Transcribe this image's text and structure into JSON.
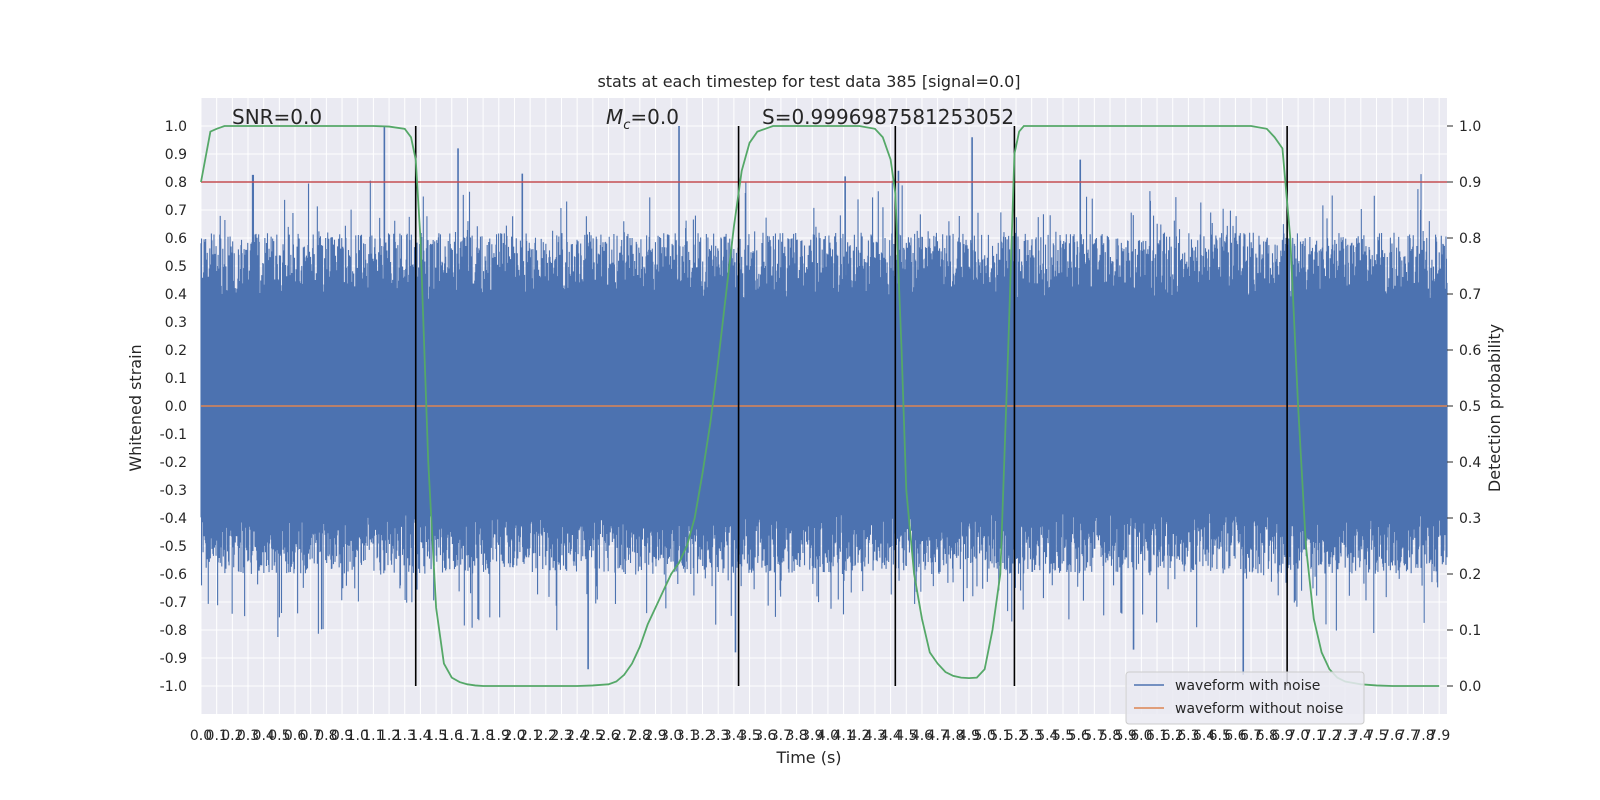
{
  "chart_data": {
    "type": "line",
    "title": "stats at each timestep for test data 385 [signal=0.0]",
    "xlabel": "Time (s)",
    "ylabel": "Whitened strain",
    "ylabel_right": "Detection probability",
    "xlim": [
      0.0,
      7.95
    ],
    "ylim": [
      -1.1,
      1.1
    ],
    "ylim_right": [
      -0.05,
      1.05
    ],
    "x_ticks": [
      0.0,
      0.1,
      0.2,
      0.3,
      0.4,
      0.5,
      0.6,
      0.7,
      0.8,
      0.9,
      1.0,
      1.1,
      1.2,
      1.3,
      1.4,
      1.5,
      1.6,
      1.7,
      1.8,
      1.9,
      2.0,
      2.1,
      2.2,
      2.3,
      2.4,
      2.5,
      2.6,
      2.7,
      2.8,
      2.9,
      3.0,
      3.1,
      3.2,
      3.3,
      3.4,
      3.5,
      3.6,
      3.7,
      3.8,
      3.9,
      4.0,
      4.1,
      4.2,
      4.3,
      4.4,
      4.5,
      4.6,
      4.7,
      4.8,
      4.9,
      5.0,
      5.1,
      5.2,
      5.3,
      5.4,
      5.5,
      5.6,
      5.7,
      5.8,
      5.9,
      6.0,
      6.1,
      6.2,
      6.3,
      6.4,
      6.5,
      6.6,
      6.7,
      6.8,
      6.9,
      7.0,
      7.1,
      7.2,
      7.3,
      7.4,
      7.5,
      7.6,
      7.7,
      7.8,
      7.9
    ],
    "y_ticks": [
      -1.0,
      -0.9,
      -0.8,
      -0.7,
      -0.6,
      -0.5,
      -0.4,
      -0.3,
      -0.2,
      -0.1,
      0.0,
      0.1,
      0.2,
      0.3,
      0.4,
      0.5,
      0.6,
      0.7,
      0.8,
      0.9,
      1.0
    ],
    "y_ticks_right": [
      0.0,
      0.1,
      0.2,
      0.3,
      0.4,
      0.5,
      0.6,
      0.7,
      0.8,
      0.9,
      1.0
    ],
    "grid": true,
    "legend_position": "lower-right",
    "annotations": {
      "snr": "SNR=0.0",
      "mc_symbol": "M",
      "mc_sub": "c",
      "mc_value": "=0.0",
      "s": "S=0.9996987581253052"
    },
    "threshold_line": {
      "y_right": 0.9,
      "color": "#c44e52"
    },
    "zero_line": {
      "y": 0.0,
      "color": "#dd8452"
    },
    "vertical_lines_x": [
      1.37,
      3.43,
      4.43,
      5.19,
      6.93
    ],
    "series": [
      {
        "name": "waveform with noise",
        "color": "#4c72b0",
        "axis": "left",
        "render": "dense-noise",
        "envelope_max": 1.0,
        "envelope_min": -0.95,
        "core_amplitude": 0.38,
        "spikes": [
          {
            "x": 1.17,
            "y": 1.0
          },
          {
            "x": 1.37,
            "y": 0.82
          },
          {
            "x": 1.64,
            "y": 0.92
          },
          {
            "x": 2.05,
            "y": 0.83
          },
          {
            "x": 2.47,
            "y": -0.94
          },
          {
            "x": 3.05,
            "y": 1.0
          },
          {
            "x": 3.41,
            "y": -0.88
          },
          {
            "x": 4.11,
            "y": 0.82
          },
          {
            "x": 4.45,
            "y": 0.84
          },
          {
            "x": 4.92,
            "y": 0.96
          },
          {
            "x": 5.61,
            "y": 0.88
          },
          {
            "x": 5.95,
            "y": -0.87
          },
          {
            "x": 6.65,
            "y": -0.96
          }
        ]
      },
      {
        "name": "waveform without noise",
        "color": "#dd8452",
        "axis": "left",
        "x": [
          0.0,
          7.95
        ],
        "y": [
          0.0,
          0.0
        ]
      },
      {
        "name": "detection probability",
        "color": "#55a868",
        "axis": "right",
        "x": [
          0.0,
          0.06,
          0.1,
          0.15,
          0.2,
          0.4,
          0.8,
          1.1,
          1.2,
          1.3,
          1.34,
          1.37,
          1.4,
          1.45,
          1.5,
          1.55,
          1.6,
          1.65,
          1.7,
          1.75,
          1.8,
          1.9,
          2.0,
          2.2,
          2.4,
          2.5,
          2.6,
          2.65,
          2.7,
          2.75,
          2.8,
          2.85,
          2.9,
          2.95,
          3.0,
          3.05,
          3.1,
          3.15,
          3.2,
          3.25,
          3.3,
          3.35,
          3.4,
          3.45,
          3.5,
          3.55,
          3.6,
          3.65,
          3.7,
          3.9,
          4.1,
          4.2,
          4.3,
          4.35,
          4.4,
          4.43,
          4.47,
          4.5,
          4.55,
          4.6,
          4.65,
          4.7,
          4.75,
          4.8,
          4.85,
          4.9,
          4.95,
          5.0,
          5.05,
          5.1,
          5.15,
          5.19,
          5.22,
          5.25,
          5.3,
          5.4,
          6.0,
          6.7,
          6.8,
          6.85,
          6.9,
          6.95,
          7.0,
          7.05,
          7.1,
          7.15,
          7.2,
          7.25,
          7.3,
          7.4,
          7.5,
          7.6,
          7.7,
          7.8,
          7.9
        ],
        "y": [
          0.9,
          0.99,
          0.995,
          1.0,
          1.0,
          1.0,
          1.0,
          1.0,
          0.999,
          0.995,
          0.98,
          0.94,
          0.8,
          0.4,
          0.14,
          0.04,
          0.015,
          0.007,
          0.003,
          0.001,
          0.0,
          0.0,
          0.0,
          0.0,
          0.0,
          0.001,
          0.003,
          0.008,
          0.02,
          0.04,
          0.07,
          0.11,
          0.14,
          0.17,
          0.2,
          0.22,
          0.25,
          0.3,
          0.38,
          0.47,
          0.58,
          0.7,
          0.82,
          0.92,
          0.97,
          0.99,
          0.995,
          1.0,
          1.0,
          1.0,
          1.0,
          1.0,
          0.995,
          0.98,
          0.94,
          0.88,
          0.6,
          0.35,
          0.2,
          0.12,
          0.06,
          0.04,
          0.025,
          0.018,
          0.015,
          0.014,
          0.015,
          0.03,
          0.1,
          0.2,
          0.6,
          0.95,
          0.99,
          1.0,
          1.0,
          1.0,
          1.0,
          1.0,
          0.995,
          0.98,
          0.96,
          0.8,
          0.5,
          0.25,
          0.12,
          0.06,
          0.03,
          0.015,
          0.008,
          0.003,
          0.001,
          0.0,
          0.0,
          0.0,
          0.0
        ]
      }
    ],
    "legend_entries": [
      {
        "name": "waveform with noise",
        "color": "#4c72b0"
      },
      {
        "name": "waveform without noise",
        "color": "#dd8452"
      }
    ]
  }
}
